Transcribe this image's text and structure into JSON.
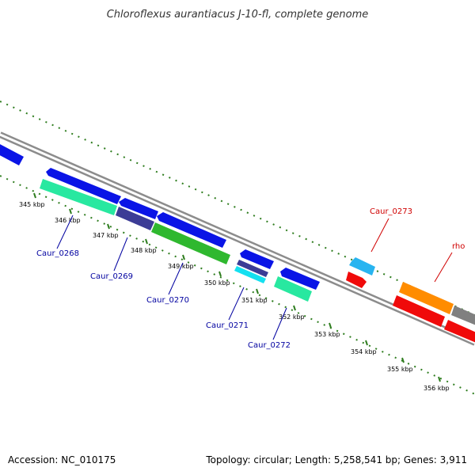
{
  "title": "Chloroflexus aurantiacus J-10-fl, complete genome",
  "footer": {
    "accession": "Accession: NC_010175",
    "summary": "Topology: circular; Length: 5,258,541 bp; Genes: 3,911"
  },
  "colors": {
    "backbone": "#8c8c8c",
    "tick": "#2e7d1e",
    "label_blue": "#0000a0",
    "label_red": "#d00000",
    "tick_label": "#000000"
  },
  "ticks": [
    {
      "label": "345 kbp"
    },
    {
      "label": "346 kbp"
    },
    {
      "label": "347 kbp"
    },
    {
      "label": "348 kbp"
    },
    {
      "label": "349 kbp"
    },
    {
      "label": "350 kbp"
    },
    {
      "label": "351 kbp"
    },
    {
      "label": "352 kbp"
    },
    {
      "label": "353 kbp"
    },
    {
      "label": "354 kbp"
    },
    {
      "label": "355 kbp"
    },
    {
      "label": "356 kbp"
    }
  ],
  "gene_labels": [
    {
      "text": "Caur_0268",
      "color": "#0000a0"
    },
    {
      "text": "Caur_0269",
      "color": "#0000a0"
    },
    {
      "text": "Caur_0270",
      "color": "#0000a0"
    },
    {
      "text": "Caur_0271",
      "color": "#0000a0"
    },
    {
      "text": "Caur_0272",
      "color": "#0000a0"
    },
    {
      "text": "Caur_0273",
      "color": "#d00000"
    },
    {
      "text": "rho",
      "color": "#d00000"
    }
  ],
  "features": [
    {
      "name": "blue-cds",
      "color": "#0a14e6"
    },
    {
      "name": "teal-cds",
      "color": "#28e8a0"
    },
    {
      "name": "slate-cds",
      "color": "#3c3c96"
    },
    {
      "name": "green-cds",
      "color": "#2fb82f"
    },
    {
      "name": "cyan-cds",
      "color": "#14e0f0"
    },
    {
      "name": "sky-cds",
      "color": "#28b4f0"
    },
    {
      "name": "red-cds",
      "color": "#f00a0a"
    },
    {
      "name": "orange-cds",
      "color": "#ff8c00"
    },
    {
      "name": "gray-cds",
      "color": "#808080"
    }
  ]
}
